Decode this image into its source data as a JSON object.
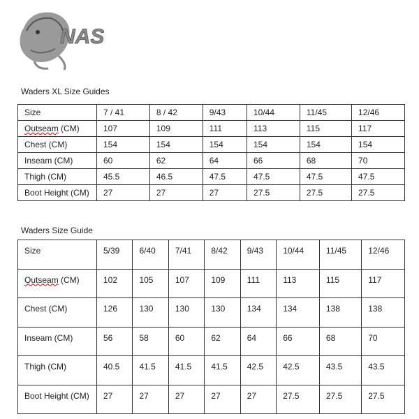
{
  "brand": {
    "logo_text": "NASH"
  },
  "tables": [
    {
      "title": "Waders XL Size Guides",
      "header": [
        "Size",
        "7 / 41",
        "8 / 42",
        "9/43",
        "10/44",
        "11/45",
        "12/46"
      ],
      "rows": [
        [
          "Outseam (CM)",
          "107",
          "109",
          "111",
          "113",
          "115",
          "117"
        ],
        [
          "Chest (CM)",
          "154",
          "154",
          "154",
          "154",
          "154",
          "154"
        ],
        [
          "Inseam (CM)",
          "60",
          "62",
          "64",
          "66",
          "68",
          "70"
        ],
        [
          "Thigh (CM)",
          "45.5",
          "46.5",
          "47.5",
          "47.5",
          "47.5",
          "47.5"
        ],
        [
          "Boot Height (CM)",
          "27",
          "27",
          "27",
          "27.5",
          "27.5",
          "27.5"
        ]
      ]
    },
    {
      "title": "Waders Size Guide",
      "header": [
        "Size",
        "5/39",
        "6/40",
        "7/41",
        "8/42",
        "9/43",
        "10/44",
        "11/45",
        "12/46"
      ],
      "rows": [
        [
          "Outseam (CM)",
          "102",
          "105",
          "107",
          "109",
          "111",
          "113",
          "115",
          "117"
        ],
        [
          "Chest (CM)",
          "126",
          "130",
          "130",
          "130",
          "134",
          "134",
          "138",
          "138"
        ],
        [
          "Inseam (CM)",
          "56",
          "58",
          "60",
          "62",
          "64",
          "66",
          "68",
          "70"
        ],
        [
          "Thigh (CM)",
          "40.5",
          "41.5",
          "41.5",
          "41.5",
          "42.5",
          "42.5",
          "43.5",
          "43.5"
        ],
        [
          "Boot Height (CM)",
          "27",
          "27",
          "27",
          "27",
          "27",
          "27.5",
          "27.5",
          "27.5"
        ]
      ]
    }
  ]
}
